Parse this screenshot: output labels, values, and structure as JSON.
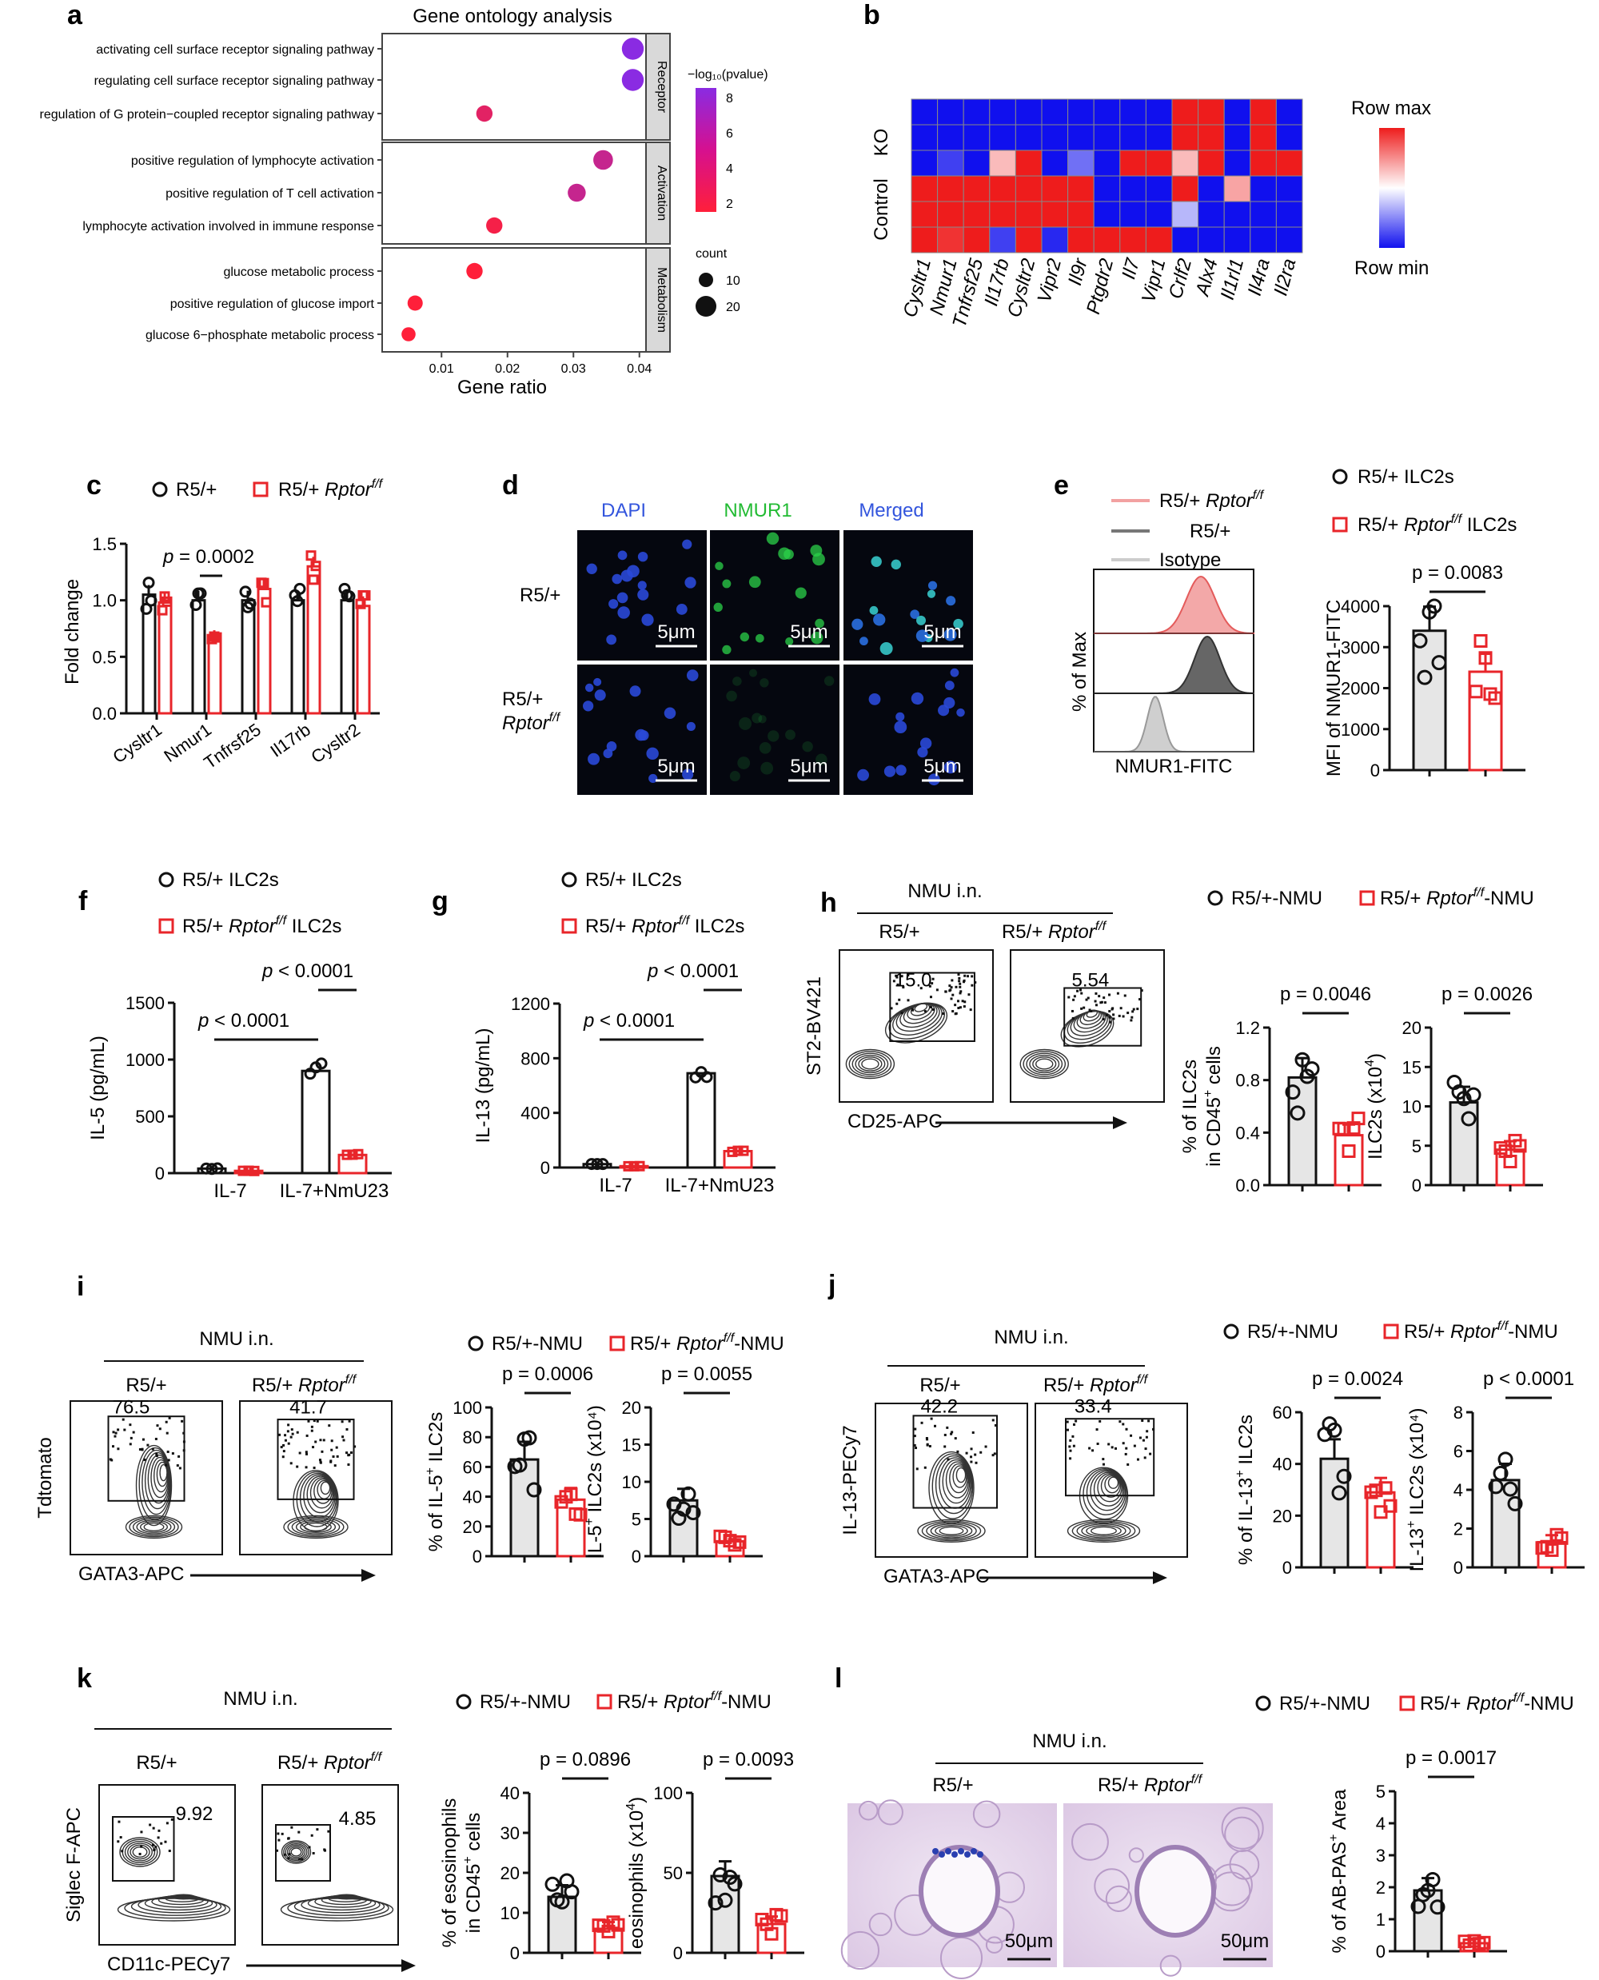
{
  "colors": {
    "ctrl": "#111111",
    "ko": "#e8252a",
    "bar_ctrl_fill": "#e6e6e6",
    "heat_hi": "#ee1c1c",
    "heat_lo": "#1010ee",
    "micro_bg": "#05070f"
  },
  "panels": {
    "a": {
      "label": "a",
      "title": "Gene ontology analysis",
      "xlabel": "Gene ratio",
      "xticks": [
        "0.01",
        "0.02",
        "0.03",
        "0.04"
      ],
      "facets": [
        "Receptor",
        "Activation",
        "Metabolism"
      ],
      "colorbar_title": "−log₁₀(pvalue)",
      "colorbar_ticks": [
        "8",
        "6",
        "4",
        "2"
      ],
      "size_title": "count",
      "size_ticks": [
        "10",
        "20"
      ],
      "terms": [
        {
          "label": "activating cell surface receptor signaling pathway",
          "facet": 0,
          "ratio": 0.039,
          "neglogp": 8,
          "count": 22
        },
        {
          "label": "regulating cell surface receptor signaling pathway",
          "facet": 0,
          "ratio": 0.039,
          "neglogp": 8,
          "count": 22
        },
        {
          "label": "regulation of G protein−coupled receptor signaling pathway",
          "facet": 0,
          "ratio": 0.0165,
          "neglogp": 3.5,
          "count": 12
        },
        {
          "label": "positive regulation of lymphocyte activation",
          "facet": 1,
          "ratio": 0.0345,
          "neglogp": 5,
          "count": 18
        },
        {
          "label": "positive regulation of T cell activation",
          "facet": 1,
          "ratio": 0.0305,
          "neglogp": 5,
          "count": 15
        },
        {
          "label": "lymphocyte activation involved in immune response",
          "facet": 1,
          "ratio": 0.018,
          "neglogp": 2.5,
          "count": 12
        },
        {
          "label": "glucose metabolic process",
          "facet": 2,
          "ratio": 0.015,
          "neglogp": 2,
          "count": 12
        },
        {
          "label": "positive regulation of glucose import",
          "facet": 2,
          "ratio": 0.006,
          "neglogp": 2,
          "count": 10
        },
        {
          "label": "glucose 6−phosphate metabolic process",
          "facet": 2,
          "ratio": 0.005,
          "neglogp": 2,
          "count": 8
        }
      ]
    },
    "b": {
      "label": "b",
      "rows": [
        "KO",
        "Control"
      ],
      "genes": [
        "Cysltr1",
        "Nmur1",
        "Tnfrsf25",
        "Il17rb",
        "Cysltr2",
        "Vipr2",
        "Il9r",
        "Ptgdr2",
        "Il7",
        "Vipr1",
        "Crlf2",
        "Alx4",
        "Il1rl1",
        "Il4ra",
        "Il2ra"
      ],
      "scale_max": "Row max",
      "scale_min": "Row min",
      "matrix": [
        [
          -1,
          -1,
          -1,
          -1,
          -1,
          -1,
          -1,
          -1,
          -1,
          -1,
          1,
          1,
          -1,
          1,
          -1
        ],
        [
          -1,
          -1,
          -1,
          -1,
          -1,
          -1,
          -1,
          -1,
          -1,
          -1,
          1,
          1,
          -1,
          1,
          -1
        ],
        [
          -1,
          -0.8,
          -1,
          0.3,
          1,
          -1,
          -0.6,
          -1,
          1,
          1,
          0.3,
          1,
          -1,
          1,
          1
        ],
        [
          1,
          1,
          1,
          1,
          1,
          1,
          1,
          -1,
          -1,
          -1,
          1,
          -1,
          0.4,
          -1,
          -1
        ],
        [
          1,
          1,
          1,
          1,
          1,
          1,
          1,
          -1,
          -1,
          -1,
          -0.3,
          -1,
          -1,
          -1,
          -1
        ],
        [
          1,
          0.9,
          1,
          -0.8,
          1,
          -0.9,
          1,
          1,
          1,
          1,
          -1,
          -1,
          -1,
          -1,
          -1
        ]
      ]
    },
    "c": {
      "label": "c",
      "legend": [
        "R5/+",
        "R5/+ ",
        "Rptor",
        "f/f"
      ],
      "ylabel": "Fold change",
      "yticks": [
        "0.0",
        "0.5",
        "1.0",
        "1.5"
      ],
      "categories": [
        "Cysltr1",
        "Nmur1",
        "Tnfrsf25",
        "Il17rb",
        "Cysltr2"
      ],
      "series": [
        {
          "name": "R5/+",
          "values": [
            1.05,
            1.0,
            1.0,
            1.0,
            1.0
          ]
        },
        {
          "name": "R5/+ Rptor f/f",
          "values": [
            0.98,
            0.65,
            1.1,
            1.3,
            0.95
          ]
        }
      ],
      "pvalue": "p = 0.0002"
    },
    "d": {
      "label": "d",
      "columns": [
        "DAPI",
        "NMUR1",
        "Merged"
      ],
      "rows": [
        "R5/+",
        "R5/+",
        "Rptor",
        "f/f"
      ],
      "scalebar": "5μm"
    },
    "e": {
      "label": "e",
      "hist_legend": [
        "R5/+ ",
        "Rptor",
        "f/f",
        "R5/+",
        "Isotype"
      ],
      "hist_ylabel": "% of Max",
      "hist_xlabel": "NMUR1-FITC",
      "legend": [
        "R5/+ ILC2s",
        "R5/+ ",
        "Rptor",
        "f/f",
        " ILC2s"
      ],
      "pvalue": "p = 0.0083",
      "ylabel": "MFI of NMUR1-FITC",
      "yticks": [
        "0",
        "1000",
        "2000",
        "3000",
        "4000"
      ],
      "means": [
        3400,
        2400
      ]
    },
    "f": {
      "label": "f",
      "legend": [
        "R5/+ ILC2s",
        "R5/+ ",
        "Rptor",
        "f/f",
        " ILC2s"
      ],
      "ylabel": "IL-5 (pg/mL)",
      "yticks": [
        "0",
        "500",
        "1000",
        "1500"
      ],
      "categories": [
        "IL-7",
        "IL-7+NmU23"
      ],
      "values": [
        [
          40,
          20
        ],
        [
          900,
          160
        ]
      ],
      "pvalues": [
        "p < 0.0001",
        "p < 0.0001"
      ]
    },
    "g": {
      "label": "g",
      "legend": [
        "R5/+ ILC2s",
        "R5/+ ",
        "Rptor",
        "f/f",
        " ILC2s"
      ],
      "ylabel": "IL-13 (pg/mL)",
      "yticks": [
        "0",
        "400",
        "800",
        "1200"
      ],
      "categories": [
        "IL-7",
        "IL-7+NmU23"
      ],
      "values": [
        [
          25,
          10
        ],
        [
          690,
          120
        ]
      ],
      "pvalues": [
        "p < 0.0001",
        "p < 0.0001"
      ]
    },
    "h": {
      "label": "h",
      "treatment": "NMU i.n.",
      "groups": [
        "R5/+",
        "R5/+ ",
        "Rptor",
        "f/f"
      ],
      "gates": [
        "15.0",
        "5.54"
      ],
      "yaxis": "ST2-BV421",
      "xaxis": "CD25-APC",
      "legend": [
        "R5/+-NMU",
        "R5/+ ",
        "Rptor",
        "f/f",
        "-NMU"
      ],
      "bar1": {
        "pvalue": "p = 0.0046",
        "ylabel1": "% of ILC2s",
        "ylabel2": "in CD45",
        "ylabel2_sup": "+",
        "ylabel2_end": " cells",
        "yticks": [
          "0.0",
          "0.4",
          "0.8",
          "1.2"
        ],
        "means": [
          0.82,
          0.38
        ]
      },
      "bar2": {
        "pvalue": "p = 0.0026",
        "ylabel": "ILC2s (x10",
        "ylabel_sup": "4",
        "ylabel_end": ")",
        "yticks": [
          "0",
          "5",
          "10",
          "15",
          "20"
        ],
        "means": [
          10.5,
          4.5
        ]
      }
    },
    "i": {
      "label": "i",
      "treatment": "NMU i.n.",
      "groups": [
        "R5/+",
        "R5/+ ",
        "Rptor",
        "f/f"
      ],
      "gates": [
        "76.5",
        "41.7"
      ],
      "yaxis": "Tdtomato",
      "xaxis": "GATA3-APC",
      "legend": [
        "R5/+-NMU",
        "R5/+ ",
        "Rptor",
        "f/f",
        "-NMU"
      ],
      "bar1": {
        "pvalue": "p = 0.0006",
        "ylabel": "% of IL-5",
        "ylabel_sup": "+",
        "ylabel_end": " ILC2s",
        "yticks": [
          "0",
          "20",
          "40",
          "60",
          "80",
          "100"
        ],
        "means": [
          65,
          38
        ]
      },
      "bar2": {
        "pvalue": "p = 0.0055",
        "ylabel": "IL-5",
        "ylabel_sup": "+",
        "ylabel_end": " ILC2s (x10⁴)",
        "yticks": [
          "0",
          "5",
          "10",
          "15",
          "20"
        ],
        "means": [
          7.5,
          2
        ]
      }
    },
    "j": {
      "label": "j",
      "treatment": "NMU i.n.",
      "groups": [
        "R5/+",
        "R5/+ ",
        "Rptor",
        "f/f"
      ],
      "gates": [
        "42.2",
        "33.4"
      ],
      "yaxis": "IL-13-PECy7",
      "xaxis": "GATA3-APC",
      "legend": [
        "R5/+-NMU",
        "R5/+ ",
        "Rptor",
        "f/f",
        "-NMU"
      ],
      "bar1": {
        "pvalue": "p = 0.0024",
        "ylabel": "% of IL-13",
        "ylabel_sup": "+",
        "ylabel_end": " ILC2s",
        "yticks": [
          "0",
          "20",
          "40",
          "60"
        ],
        "means": [
          42,
          29
        ]
      },
      "bar2": {
        "pvalue": "p < 0.0001",
        "ylabel": "IL-13",
        "ylabel_sup": "+",
        "ylabel_end": " ILC2s (x10⁴)",
        "yticks": [
          "0",
          "2",
          "4",
          "6",
          "8"
        ],
        "means": [
          4.5,
          1.3
        ]
      }
    },
    "k": {
      "label": "k",
      "treatment": "NMU i.n.",
      "groups": [
        "R5/+",
        "R5/+ ",
        "Rptor",
        "f/f"
      ],
      "gates": [
        "9.92",
        "4.85"
      ],
      "yaxis": "Siglec F-APC",
      "xaxis": "CD11c-PECy7",
      "legend": [
        "R5/+-NMU",
        "R5/+ ",
        "Rptor",
        "f/f",
        "-NMU"
      ],
      "bar1": {
        "pvalue": "p = 0.0896",
        "ylabel1": "% of esosinophils",
        "ylabel2": "in CD45",
        "ylabel2_sup": "+",
        "ylabel2_end": " cells",
        "yticks": [
          "0",
          "10",
          "20",
          "30",
          "40"
        ],
        "means": [
          14,
          6
        ]
      },
      "bar2": {
        "pvalue": "p = 0.0093",
        "ylabel": "eosinophils (x10",
        "ylabel_sup": "4",
        "ylabel_end": ")",
        "yticks": [
          "0",
          "50",
          "100"
        ],
        "means": [
          48,
          18
        ]
      }
    },
    "l": {
      "label": "l",
      "treatment": "NMU i.n.",
      "groups": [
        "R5/+",
        "R5/+ ",
        "Rptor",
        "f/f"
      ],
      "scalebar": "50μm",
      "legend": [
        "R5/+-NMU",
        "R5/+ ",
        "Rptor",
        "f/f",
        "-NMU"
      ],
      "bar": {
        "pvalue": "p = 0.0017",
        "ylabel": "% of AB-PAS",
        "ylabel_sup": "+",
        "ylabel_end": " Area",
        "yticks": [
          "0",
          "1",
          "2",
          "3",
          "4",
          "5"
        ],
        "means": [
          1.9,
          0.25
        ]
      }
    }
  }
}
